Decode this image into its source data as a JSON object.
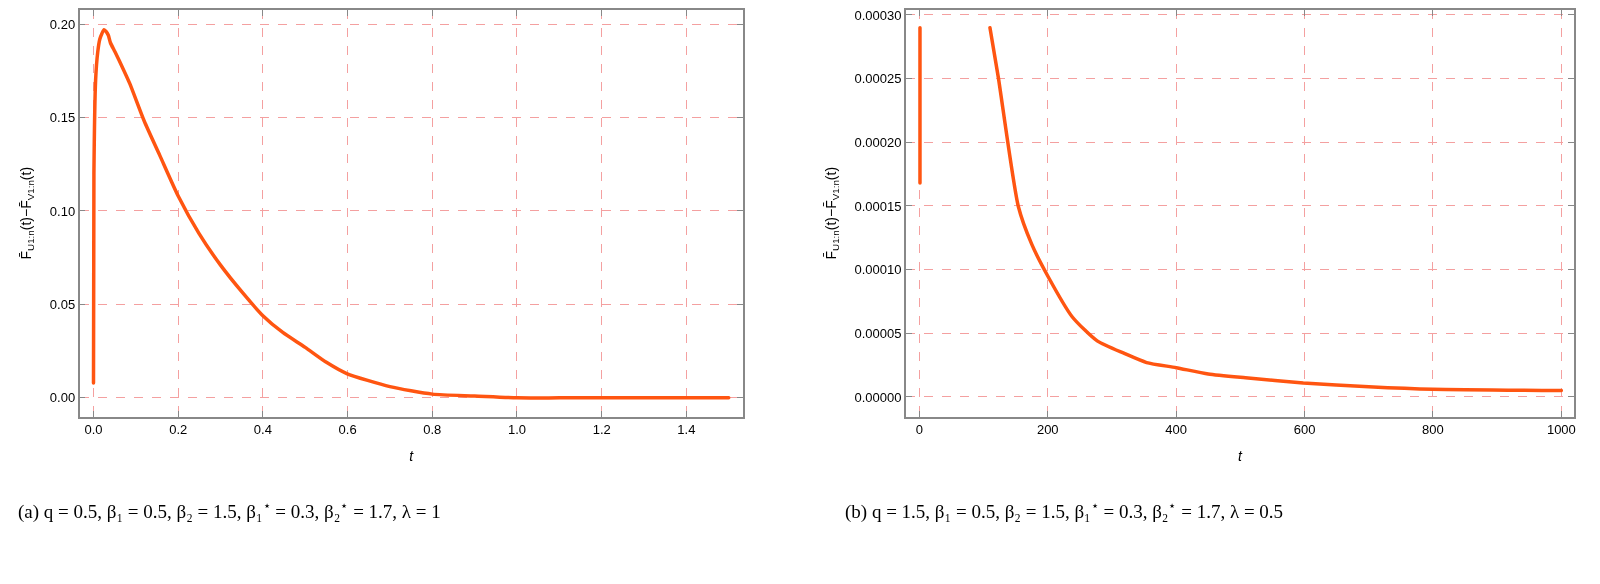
{
  "chart_data": [
    {
      "type": "line",
      "xlabel": "t",
      "ylabel": "F̄$_{U1:n}$(t)−F̄$_{V1:n}$(t)",
      "x": [
        0,
        0.001,
        0.005,
        0.01,
        0.015,
        0.02,
        0.025,
        0.03,
        0.035,
        0.04,
        0.051,
        0.07,
        0.086,
        0.12,
        0.156,
        0.2,
        0.249,
        0.3,
        0.353,
        0.4,
        0.447,
        0.5,
        0.55,
        0.598,
        0.7,
        0.8,
        0.9,
        1.0,
        1.1,
        1.2,
        1.3,
        1.4,
        1.5
      ],
      "series": [
        {
          "color": "#ff5511",
          "values": [
            0.008,
            0.12,
            0.17,
            0.185,
            0.192,
            0.195,
            0.197,
            0.196,
            0.194,
            0.19,
            0.185,
            0.176,
            0.168,
            0.148,
            0.13,
            0.108,
            0.088,
            0.071,
            0.056,
            0.044,
            0.035,
            0.027,
            0.019,
            0.013,
            0.006,
            0.002,
            0.001,
            0.0,
            0.0,
            0.0,
            0.0,
            0.0,
            0.0
          ]
        }
      ],
      "xlim": [
        -0.033,
        1.534
      ],
      "ylim": [
        -0.01,
        0.2076
      ],
      "xticks": [
        {
          "value": 0,
          "label": "0.0"
        },
        0.2,
        0.4,
        0.6,
        0.8,
        {
          "value": 1,
          "label": "1.0"
        },
        1.2,
        1.4
      ],
      "yticks": [
        {
          "value": 0,
          "label": "0.00"
        },
        0.05,
        {
          "value": 0.1,
          "label": "0.10"
        },
        0.15,
        {
          "value": 0.2,
          "label": "0.20"
        }
      ],
      "grid": true,
      "line_style": "solid",
      "marker": "none",
      "annotations": [
        "(a) q = 0.5, β₁ = 0.5, β₂ = 1.5, β₁$^{⋆}$ = 0.3, β₂$^{⋆}$ = 1.7, λ = 1"
      ]
    },
    {
      "type": "line",
      "xlabel": "t",
      "ylabel": "F̄$_{U1:n}$(t)−F̄$_{V1:n}$(t)",
      "x": [
        110,
        123,
        154,
        175,
        200,
        238,
        277,
        320,
        354,
        400,
        450,
        508,
        598,
        700,
        800,
        1000
      ],
      "series": [
        {
          "color": "#ff5511",
          "x": [
            1,
            1
          ],
          "values": [
            0.000168,
            0.00029
          ]
        },
        {
          "color": "#ff5511",
          "values": [
            0.00029,
            0.000251,
            0.00015,
            0.00012,
            9.5e-05,
            6.3e-05,
            4.4e-05,
            3.4e-05,
            2.7e-05,
            2.3e-05,
            1.8e-05,
            1.5e-05,
            1.1e-05,
            8e-06,
            6e-06,
            5e-06
          ]
        }
      ],
      "xlim": [
        -21,
        1020
      ],
      "ylim": [
        -1.54e-05,
        0.000304
      ],
      "xticks": [
        0,
        200,
        400,
        600,
        800,
        1000
      ],
      "yticks": [
        {
          "value": 0,
          "label": "0.00000"
        },
        {
          "value": 5e-05,
          "label": "0.00005"
        },
        {
          "value": 0.0001,
          "label": "0.00010"
        },
        {
          "value": 0.00015,
          "label": "0.00015"
        },
        {
          "value": 0.0002,
          "label": "0.00020"
        },
        {
          "value": 0.00025,
          "label": "0.00025"
        },
        {
          "value": 0.0003,
          "label": "0.00030"
        }
      ],
      "grid": true,
      "line_style": "solid",
      "marker": "none",
      "annotations": [
        "(b) q = 1.5, β₁ = 0.5, β₂ = 1.5, β₁$^{⋆}$ = 0.3, β₂$^{⋆}$ = 1.7, λ = 0.5"
      ]
    }
  ]
}
